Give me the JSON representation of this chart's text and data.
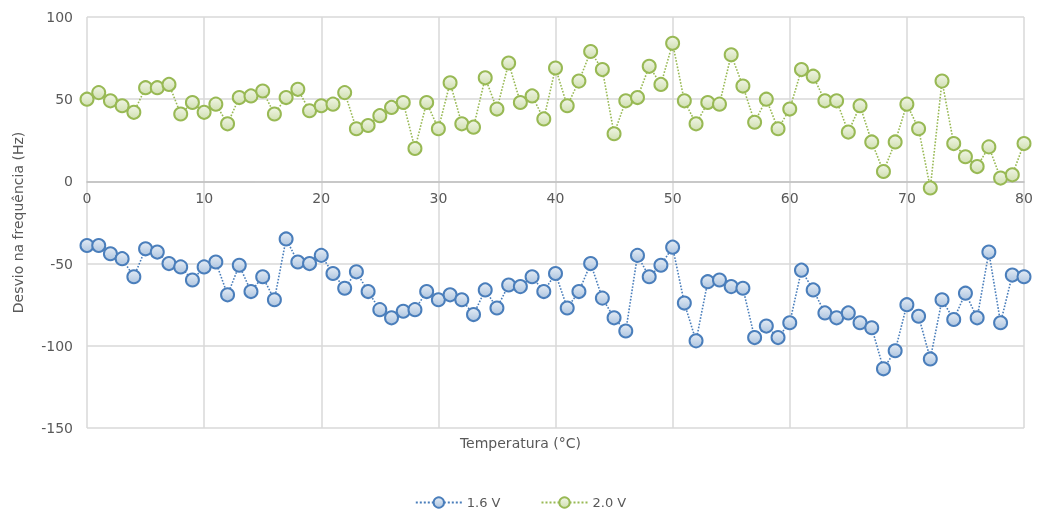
{
  "chart_data": {
    "type": "line",
    "xlabel": "Temperatura (°C)",
    "ylabel": "Desvio na frequência (Hz)",
    "x": [
      0,
      1,
      2,
      3,
      4,
      5,
      6,
      7,
      8,
      9,
      10,
      11,
      12,
      13,
      14,
      15,
      16,
      17,
      18,
      19,
      20,
      21,
      22,
      23,
      24,
      25,
      26,
      27,
      28,
      29,
      30,
      31,
      32,
      33,
      34,
      35,
      36,
      37,
      38,
      39,
      40,
      41,
      42,
      43,
      44,
      45,
      46,
      47,
      48,
      49,
      50,
      51,
      52,
      53,
      54,
      55,
      56,
      57,
      58,
      59,
      60,
      61,
      62,
      63,
      64,
      65,
      66,
      67,
      68,
      69,
      70,
      71,
      72,
      73,
      74,
      75,
      76,
      77,
      78,
      79,
      80
    ],
    "series": [
      {
        "name": "1.6 V",
        "color": "#4a7ebb",
        "values": [
          -39,
          -39,
          -44,
          -47,
          -58,
          -41,
          -43,
          -50,
          -52,
          -60,
          -52,
          -49,
          -69,
          -51,
          -67,
          -58,
          -72,
          -35,
          -49,
          -50,
          -45,
          -56,
          -65,
          -55,
          -67,
          -78,
          -83,
          -79,
          -78,
          -67,
          -72,
          -69,
          -72,
          -81,
          -66,
          -77,
          -63,
          -64,
          -58,
          -67,
          -56,
          -77,
          -67,
          -50,
          -71,
          -83,
          -91,
          -45,
          -58,
          -51,
          -40,
          -74,
          -97,
          -61,
          -60,
          -64,
          -65,
          -95,
          -88,
          -95,
          -86,
          -54,
          -66,
          -80,
          -83,
          -80,
          -86,
          -89,
          -114,
          -103,
          -75,
          -82,
          -108,
          -72,
          -84,
          -68,
          -83,
          -43,
          -86,
          -57,
          -58
        ]
      },
      {
        "name": "2.0 V",
        "color": "#98b954",
        "values": [
          50,
          54,
          49,
          46,
          42,
          57,
          57,
          59,
          41,
          48,
          42,
          47,
          35,
          51,
          52,
          55,
          41,
          51,
          56,
          43,
          46,
          47,
          54,
          32,
          34,
          40,
          45,
          48,
          20,
          48,
          32,
          60,
          35,
          33,
          63,
          44,
          72,
          48,
          52,
          38,
          69,
          46,
          61,
          79,
          68,
          29,
          49,
          51,
          70,
          59,
          84,
          49,
          35,
          48,
          47,
          77,
          58,
          36,
          50,
          32,
          44,
          68,
          64,
          49,
          49,
          30,
          46,
          24,
          6,
          24,
          47,
          32,
          -4,
          61,
          23,
          15,
          9,
          21,
          2,
          4,
          23
        ]
      }
    ],
    "xlim": [
      0,
      80
    ],
    "xticks": [
      0,
      10,
      20,
      30,
      40,
      50,
      60,
      70,
      80
    ],
    "ylim": [
      -150,
      100
    ],
    "yticks": [
      -150,
      -100,
      -50,
      0,
      50,
      100
    ],
    "grid": true,
    "legend": "bottom",
    "marker": "circle",
    "line_style": "dotted"
  }
}
